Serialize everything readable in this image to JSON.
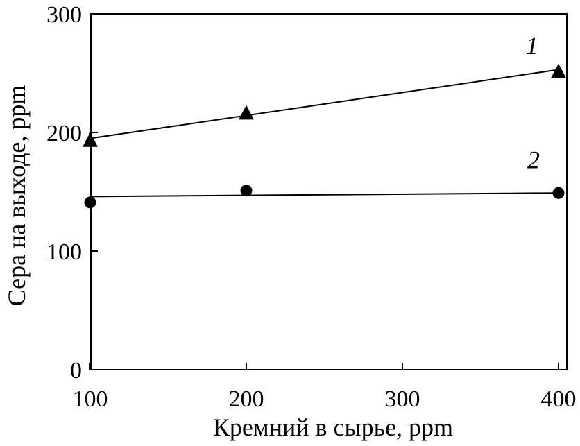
{
  "chart_data": {
    "type": "line",
    "x_ticks": [
      "100",
      "200",
      "300",
      "400"
    ],
    "y_ticks": [
      "0",
      "100",
      "200",
      "300"
    ],
    "xlabel": "Кремний в сырье, ppm",
    "ylabel": "Сера на выходе, ppm",
    "xlim": [
      100,
      400
    ],
    "ylim": [
      0,
      300
    ],
    "grid": false,
    "series": [
      {
        "label": "1",
        "marker": "triangle",
        "x": [
          100,
          200,
          400
        ],
        "y": [
          194,
          217,
          252
        ],
        "fit": [
          [
            100,
            195
          ],
          [
            400,
            253
          ]
        ],
        "label_at": [
          383,
          266
        ]
      },
      {
        "label": "2",
        "marker": "circle",
        "x": [
          100,
          200,
          400
        ],
        "y": [
          141,
          151,
          149
        ],
        "fit": [
          [
            100,
            146
          ],
          [
            400,
            149
          ]
        ],
        "label_at": [
          384,
          170
        ]
      }
    ]
  }
}
